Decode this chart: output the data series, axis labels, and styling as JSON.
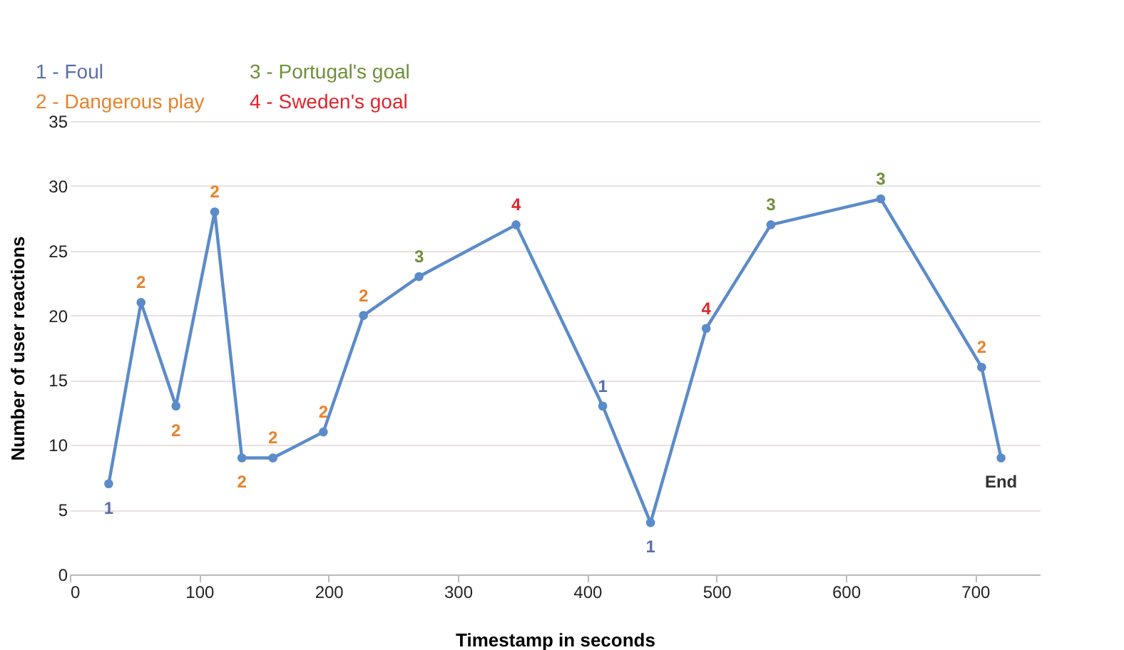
{
  "chart_data": {
    "type": "line",
    "xlabel": "Timestamp in seconds",
    "ylabel": "Number of user reactions",
    "x": [
      30,
      55,
      82,
      112,
      133,
      157,
      196,
      227,
      270,
      345,
      412,
      449,
      492,
      542,
      627,
      705,
      720
    ],
    "series": [
      {
        "color": "#5b8bc9",
        "values": [
          7,
          21,
          13,
          28,
          9,
          9,
          11,
          20,
          23,
          27,
          13,
          4,
          19,
          27,
          29,
          16,
          9
        ]
      }
    ],
    "marker": "circle",
    "line_style": "solid",
    "grid": "y",
    "xlim": [
      0,
      750
    ],
    "xticks": [
      0,
      100,
      200,
      300,
      400,
      500,
      600,
      700
    ],
    "ylim": [
      0,
      35
    ],
    "yticks": [
      0,
      5,
      10,
      15,
      20,
      25,
      30,
      35
    ],
    "annotations": [
      "1 - Foul",
      "2 - Dangerous play",
      "3 - Portugal's goal",
      "4 - Sweden's goal",
      {
        "text": "1",
        "x": 30,
        "y": 7
      },
      {
        "text": "2",
        "x": 55,
        "y": 21
      },
      {
        "text": "2",
        "x": 82,
        "y": 13
      },
      {
        "text": "2",
        "x": 112,
        "y": 28
      },
      {
        "text": "2",
        "x": 133,
        "y": 9
      },
      {
        "text": "2",
        "x": 157,
        "y": 9
      },
      {
        "text": "2",
        "x": 196,
        "y": 11
      },
      {
        "text": "2",
        "x": 227,
        "y": 20
      },
      {
        "text": "3",
        "x": 270,
        "y": 23
      },
      {
        "text": "4",
        "x": 345,
        "y": 27
      },
      {
        "text": "1",
        "x": 412,
        "y": 13
      },
      {
        "text": "1",
        "x": 449,
        "y": 4
      },
      {
        "text": "4",
        "x": 492,
        "y": 19
      },
      {
        "text": "3",
        "x": 542,
        "y": 27
      },
      {
        "text": "3",
        "x": 627,
        "y": 29
      },
      {
        "text": "2",
        "x": 705,
        "y": 16
      },
      {
        "text": "End",
        "x": 720,
        "y": 9
      }
    ]
  }
}
